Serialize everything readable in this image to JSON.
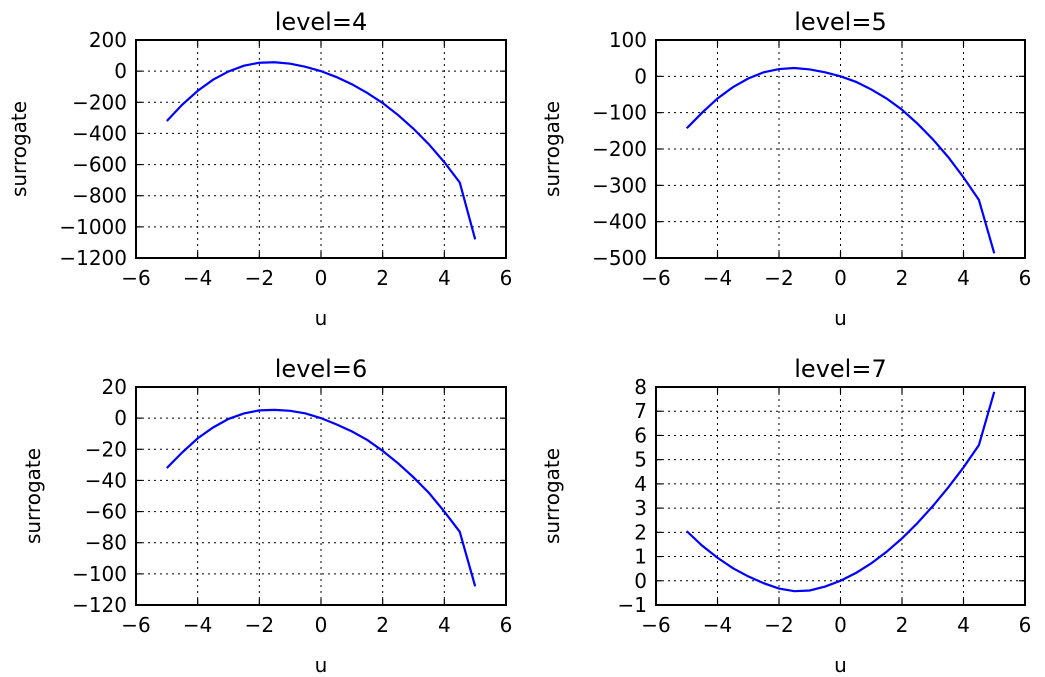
{
  "chart_data": [
    {
      "type": "line",
      "title": "level=4",
      "xlabel": "u",
      "ylabel": "surrogate",
      "xlim": [
        -6,
        6
      ],
      "ylim": [
        -1200,
        200
      ],
      "xticks": [
        -6,
        -4,
        -2,
        0,
        2,
        4,
        6
      ],
      "xticklabels": [
        "−6",
        "−4",
        "−2",
        "0",
        "2",
        "4",
        "6"
      ],
      "yticks": [
        200,
        0,
        -200,
        -400,
        -600,
        -800,
        -1000,
        -1200
      ],
      "yticklabels": [
        "200",
        "0",
        "−200",
        "−400",
        "−600",
        "−800",
        "−1000",
        "−1200"
      ],
      "grid": true,
      "series": [
        {
          "color": "#0000ff",
          "x": [
            -5,
            -4.5,
            -4,
            -3.5,
            -3,
            -2.5,
            -2,
            -1.5,
            -1,
            -0.5,
            0,
            0.5,
            1,
            1.5,
            2,
            2.5,
            3,
            3.5,
            4,
            4.5,
            5
          ],
          "y": [
            -320,
            -215,
            -127,
            -55,
            -2,
            35,
            54,
            57,
            48,
            28,
            0,
            -38,
            -84,
            -140,
            -205,
            -282,
            -370,
            -470,
            -585,
            -715,
            -1080
          ]
        }
      ]
    },
    {
      "type": "line",
      "title": "level=5",
      "xlabel": "u",
      "ylabel": "surrogate",
      "xlim": [
        -6,
        6
      ],
      "ylim": [
        -500,
        100
      ],
      "xticks": [
        -6,
        -4,
        -2,
        0,
        2,
        4,
        6
      ],
      "xticklabels": [
        "−6",
        "−4",
        "−2",
        "0",
        "2",
        "4",
        "6"
      ],
      "yticks": [
        100,
        0,
        -100,
        -200,
        -300,
        -400,
        -500
      ],
      "yticklabels": [
        "100",
        "0",
        "−100",
        "−200",
        "−300",
        "−400",
        "−500"
      ],
      "grid": true,
      "series": [
        {
          "color": "#0000ff",
          "x": [
            -5,
            -4.5,
            -4,
            -3.5,
            -3,
            -2.5,
            -2,
            -1.5,
            -1,
            -0.5,
            0,
            0.5,
            1,
            1.5,
            2,
            2.5,
            3,
            3.5,
            4,
            4.5,
            5
          ],
          "y": [
            -143,
            -100,
            -61,
            -30,
            -6,
            11,
            20,
            23,
            19,
            11,
            0,
            -15,
            -36,
            -61,
            -92,
            -130,
            -173,
            -222,
            -278,
            -340,
            -487
          ]
        }
      ]
    },
    {
      "type": "line",
      "title": "level=6",
      "xlabel": "u",
      "ylabel": "surrogate",
      "xlim": [
        -6,
        6
      ],
      "ylim": [
        -120,
        20
      ],
      "xticks": [
        -6,
        -4,
        -2,
        0,
        2,
        4,
        6
      ],
      "xticklabels": [
        "−6",
        "−4",
        "−2",
        "0",
        "2",
        "4",
        "6"
      ],
      "yticks": [
        20,
        0,
        -20,
        -40,
        -60,
        -80,
        -100,
        -120
      ],
      "yticklabels": [
        "20",
        "0",
        "−20",
        "−40",
        "−60",
        "−80",
        "−100",
        "−120"
      ],
      "grid": true,
      "series": [
        {
          "color": "#0000ff",
          "x": [
            -5,
            -4.5,
            -4,
            -3.5,
            -3,
            -2.5,
            -2,
            -1.5,
            -1,
            -0.5,
            0,
            0.5,
            1,
            1.5,
            2,
            2.5,
            3,
            3.5,
            4,
            4.5,
            5
          ],
          "y": [
            -32,
            -22,
            -13,
            -6,
            -0.5,
            3,
            5,
            5.3,
            4.7,
            3,
            0,
            -4,
            -8.5,
            -14,
            -21,
            -29,
            -38,
            -48,
            -60,
            -73,
            -108
          ]
        }
      ]
    },
    {
      "type": "line",
      "title": "level=7",
      "xlabel": "u",
      "ylabel": "surrogate",
      "xlim": [
        -6,
        6
      ],
      "ylim": [
        -1,
        8
      ],
      "xticks": [
        -6,
        -4,
        -2,
        0,
        2,
        4,
        6
      ],
      "xticklabels": [
        "−6",
        "−4",
        "−2",
        "0",
        "2",
        "4",
        "6"
      ],
      "yticks": [
        8,
        7,
        6,
        5,
        4,
        3,
        2,
        1,
        0,
        -1
      ],
      "yticklabels": [
        "8",
        "7",
        "6",
        "5",
        "4",
        "3",
        "2",
        "1",
        "0",
        "−1"
      ],
      "grid": true,
      "series": [
        {
          "color": "#0000ff",
          "x": [
            -5,
            -4.5,
            -4,
            -3.5,
            -3,
            -2.5,
            -2,
            -1.5,
            -1,
            -0.5,
            0,
            0.5,
            1,
            1.5,
            2,
            2.5,
            3,
            3.5,
            4,
            4.5,
            5
          ],
          "y": [
            2.05,
            1.45,
            0.95,
            0.52,
            0.18,
            -0.1,
            -0.32,
            -0.43,
            -0.4,
            -0.24,
            0,
            0.32,
            0.72,
            1.2,
            1.75,
            2.38,
            3.08,
            3.85,
            4.68,
            5.6,
            7.8
          ]
        }
      ]
    }
  ]
}
